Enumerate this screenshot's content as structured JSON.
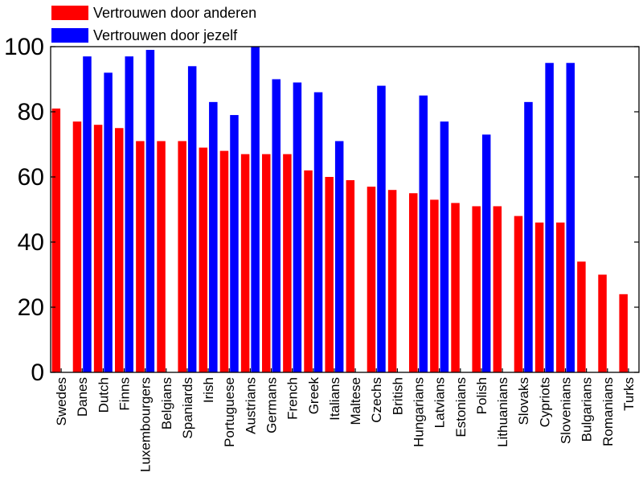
{
  "chart_data": {
    "type": "bar",
    "categories": [
      "Swedes",
      "Danes",
      "Dutch",
      "Finns",
      "Luxembourgers",
      "Belgians",
      "Spaniards",
      "Irish",
      "Portuguese",
      "Austrians",
      "Germans",
      "French",
      "Greek",
      "Italians",
      "Maltese",
      "Czechs",
      "British",
      "Hungarians",
      "Latvians",
      "Estonians",
      "Polish",
      "Lithuanians",
      "Slovaks",
      "Cypriots",
      "Slovenians",
      "Bulgarians",
      "Romanians",
      "Turks"
    ],
    "series": [
      {
        "name": "Vertrouwen door anderen",
        "color": "#ff0000",
        "values": [
          81,
          77,
          76,
          75,
          71,
          71,
          71,
          69,
          68,
          67,
          67,
          67,
          62,
          60,
          59,
          57,
          56,
          55,
          53,
          52,
          51,
          51,
          48,
          46,
          46,
          34,
          30,
          24
        ]
      },
      {
        "name": "Vertrouwen door jezelf",
        "color": "#0000ff",
        "values": [
          null,
          97,
          92,
          97,
          99,
          null,
          94,
          83,
          79,
          100,
          90,
          89,
          86,
          71,
          null,
          88,
          null,
          85,
          77,
          null,
          73,
          null,
          83,
          95,
          95,
          null,
          null,
          null
        ]
      }
    ],
    "title": "",
    "xlabel": "",
    "ylabel": "",
    "ylim": [
      0,
      100
    ],
    "yticks": [
      "0",
      "20",
      "40",
      "60",
      "80",
      "100"
    ],
    "grid": false,
    "legend_position": "top-left"
  }
}
